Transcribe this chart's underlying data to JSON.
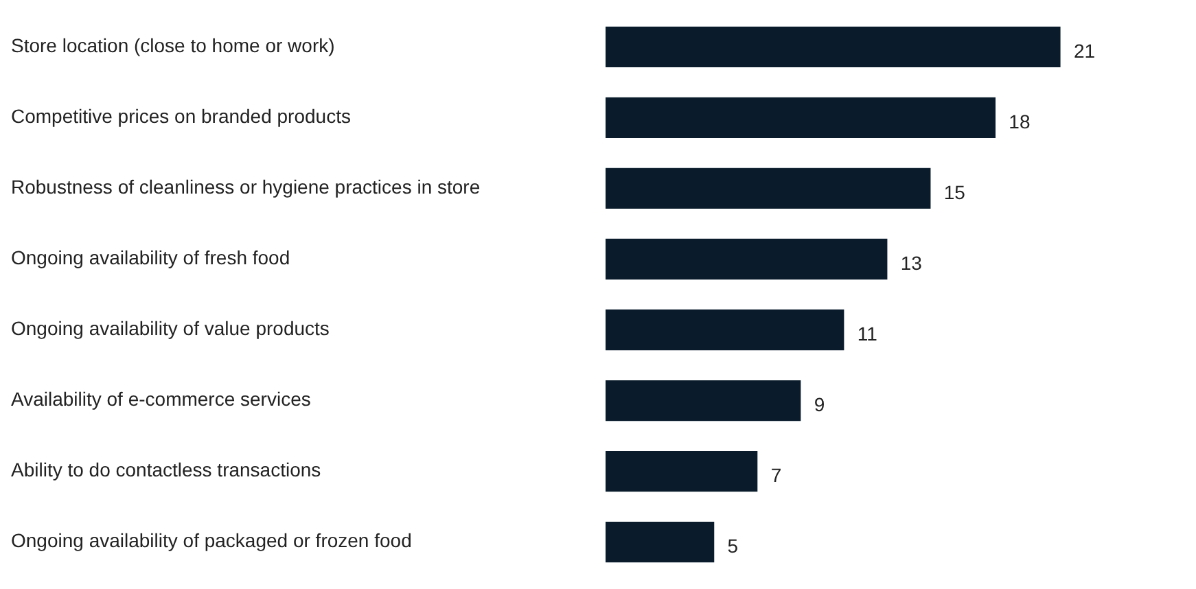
{
  "chart_data": {
    "type": "bar",
    "orientation": "horizontal",
    "categories": [
      "Store location (close to home or work)",
      "Competitive prices on branded products",
      "Robustness of cleanliness or hygiene practices in store",
      "Ongoing availability of fresh food",
      "Ongoing availability of value products",
      "Availability of e-commerce services",
      "Ability to do contactless transactions",
      "Ongoing availability of packaged or frozen food"
    ],
    "values": [
      21,
      18,
      15,
      13,
      11,
      9,
      7,
      5
    ],
    "color": "#0a1c2c",
    "data_labels": true,
    "legend": false
  }
}
